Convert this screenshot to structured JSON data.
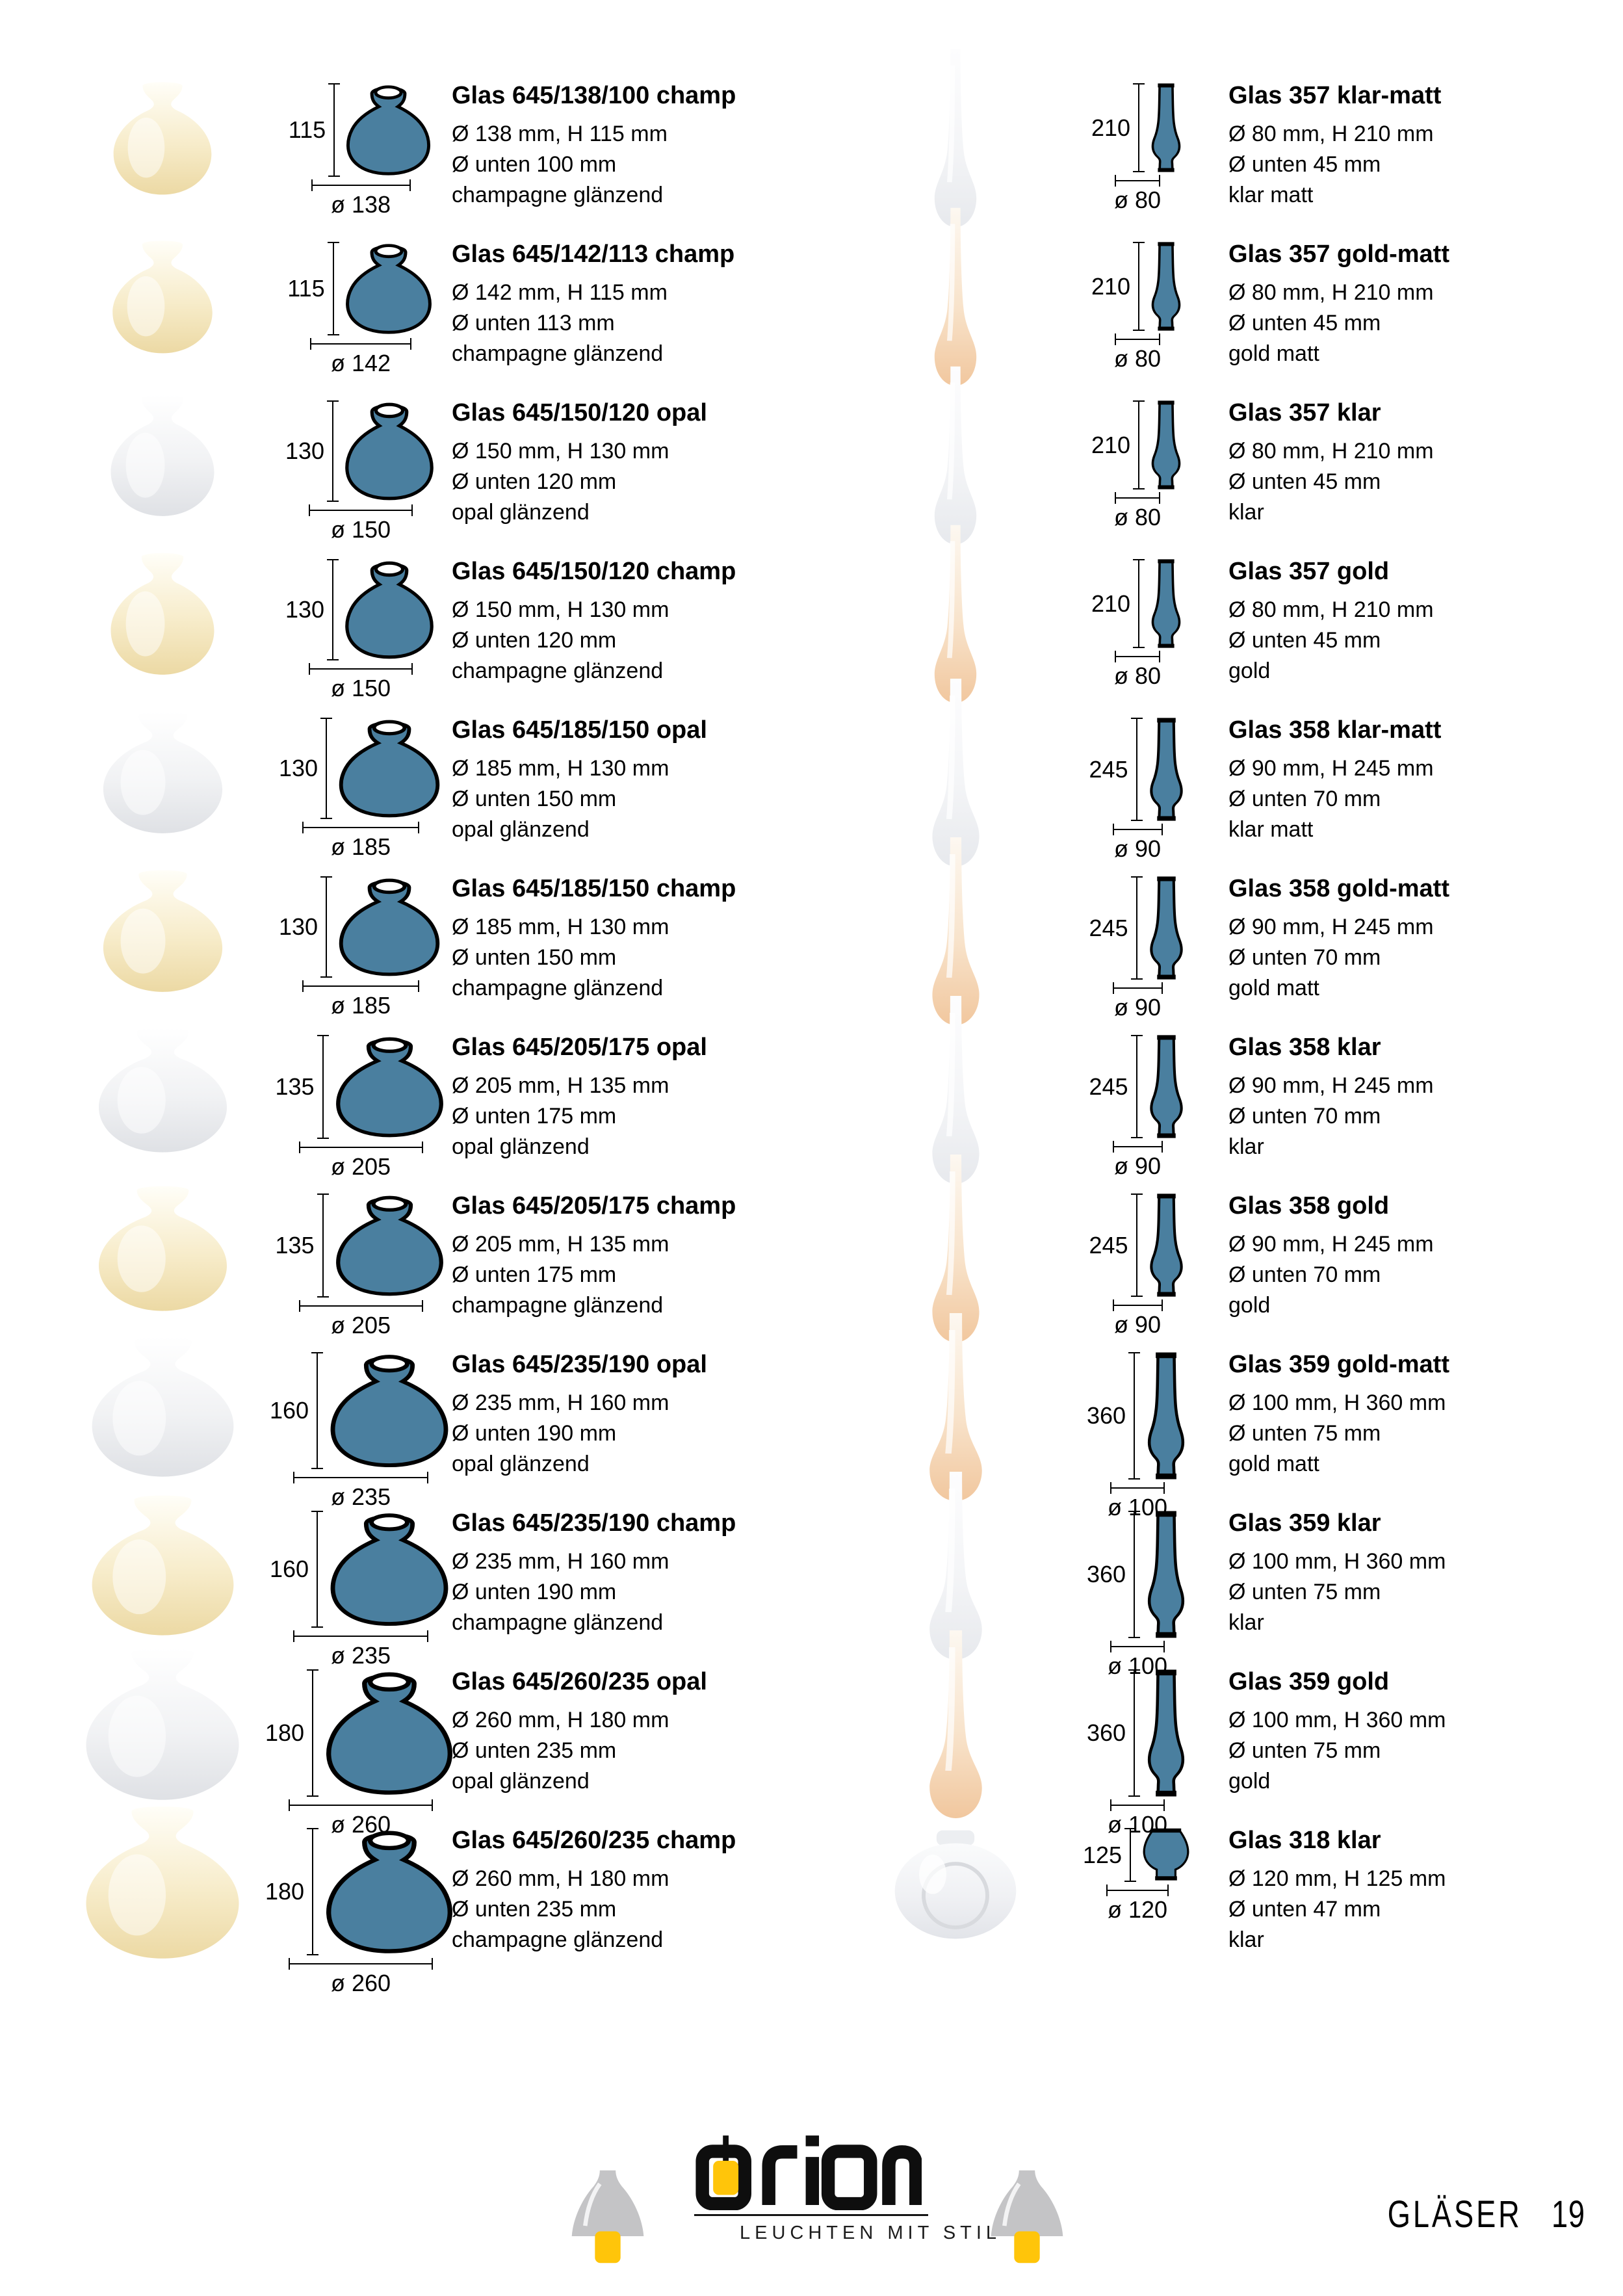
{
  "colors": {
    "drawing_blue": "#4a7f9f",
    "logo_yellow": "#ffc50a",
    "icon_gray": "#c4c4c6",
    "text_black": "#000000"
  },
  "footer": {
    "brand": "orion",
    "tagline": "LEUCHTEN MIT STIL",
    "section": "GLÄSER",
    "page_number": "19",
    "left_icon": "pendant-lamp-icon",
    "right_icon": "pendant-lamp-icon"
  },
  "products": {
    "left": [
      {
        "title": "Glas 645/138/100 champ",
        "spec": "Ø 138 mm, H 115 mm",
        "spec_unten": "Ø unten 100 mm",
        "finish": "champagne glänzend",
        "dim_h": "115",
        "dim_d": "ø 138",
        "mm_d": 138,
        "mm_h": 115,
        "shape": "shade",
        "photo": "champagne"
      },
      {
        "title": "Glas 645/142/113 champ",
        "spec": "Ø 142 mm, H 115 mm",
        "spec_unten": "Ø unten 113 mm",
        "finish": "champagne glänzend",
        "dim_h": "115",
        "dim_d": "ø 142",
        "mm_d": 142,
        "mm_h": 115,
        "shape": "shade",
        "photo": "champagne"
      },
      {
        "title": "Glas 645/150/120 opal",
        "spec": "Ø 150 mm, H 130 mm",
        "spec_unten": "Ø unten 120 mm",
        "finish": "opal glänzend",
        "dim_h": "130",
        "dim_d": "ø 150",
        "mm_d": 150,
        "mm_h": 130,
        "shape": "shade",
        "photo": "opal"
      },
      {
        "title": "Glas 645/150/120 champ",
        "spec": "Ø 150 mm, H 130 mm",
        "spec_unten": "Ø unten 120 mm",
        "finish": "champagne glänzend",
        "dim_h": "130",
        "dim_d": "ø 150",
        "mm_d": 150,
        "mm_h": 130,
        "shape": "shade",
        "photo": "champagne"
      },
      {
        "title": "Glas 645/185/150 opal",
        "spec": "Ø 185 mm, H 130 mm",
        "spec_unten": "Ø unten 150 mm",
        "finish": "opal glänzend",
        "dim_h": "130",
        "dim_d": "ø 185",
        "mm_d": 185,
        "mm_h": 130,
        "shape": "shade",
        "photo": "opal"
      },
      {
        "title": "Glas 645/185/150 champ",
        "spec": "Ø 185 mm, H 130 mm",
        "spec_unten": "Ø unten 150 mm",
        "finish": "champagne glänzend",
        "dim_h": "130",
        "dim_d": "ø 185",
        "mm_d": 185,
        "mm_h": 130,
        "shape": "shade",
        "photo": "champagne"
      },
      {
        "title": "Glas 645/205/175 opal",
        "spec": "Ø 205 mm, H 135 mm",
        "spec_unten": "Ø unten 175 mm",
        "finish": "opal glänzend",
        "dim_h": "135",
        "dim_d": "ø 205",
        "mm_d": 205,
        "mm_h": 135,
        "shape": "shade",
        "photo": "opal"
      },
      {
        "title": "Glas 645/205/175 champ",
        "spec": "Ø 205 mm, H 135 mm",
        "spec_unten": "Ø unten 175 mm",
        "finish": "champagne glänzend",
        "dim_h": "135",
        "dim_d": "ø 205",
        "mm_d": 205,
        "mm_h": 135,
        "shape": "shade",
        "photo": "champagne"
      },
      {
        "title": "Glas 645/235/190 opal",
        "spec": "Ø 235 mm, H 160 mm",
        "spec_unten": "Ø unten 190 mm",
        "finish": "opal glänzend",
        "dim_h": "160",
        "dim_d": "ø 235",
        "mm_d": 235,
        "mm_h": 160,
        "shape": "shade",
        "photo": "opal"
      },
      {
        "title": "Glas 645/235/190 champ",
        "spec": "Ø 235 mm, H 160 mm",
        "spec_unten": "Ø unten 190 mm",
        "finish": "champagne glänzend",
        "dim_h": "160",
        "dim_d": "ø 235",
        "mm_d": 235,
        "mm_h": 160,
        "shape": "shade",
        "photo": "champagne"
      },
      {
        "title": "Glas 645/260/235 opal",
        "spec": "Ø 260 mm, H 180 mm",
        "spec_unten": "Ø unten 235 mm",
        "finish": "opal glänzend",
        "dim_h": "180",
        "dim_d": "ø 260",
        "mm_d": 260,
        "mm_h": 180,
        "shape": "shade",
        "photo": "opal"
      },
      {
        "title": "Glas 645/260/235 champ",
        "spec": "Ø 260 mm, H 180 mm",
        "spec_unten": "Ø unten 235 mm",
        "finish": "champagne glänzend",
        "dim_h": "180",
        "dim_d": "ø 260",
        "mm_d": 260,
        "mm_h": 180,
        "shape": "shade",
        "photo": "champagne"
      }
    ],
    "right": [
      {
        "title": "Glas 357 klar-matt",
        "spec": "Ø 80 mm, H 210 mm",
        "spec_unten": "Ø unten 45 mm",
        "finish": "klar matt",
        "dim_h": "210",
        "dim_d": "ø 80",
        "mm_d": 80,
        "mm_h": 210,
        "shape": "chimney",
        "photo": "klar"
      },
      {
        "title": "Glas 357 gold-matt",
        "spec": "Ø 80 mm, H 210 mm",
        "spec_unten": "Ø unten 45 mm",
        "finish": "gold matt",
        "dim_h": "210",
        "dim_d": "ø 80",
        "mm_d": 80,
        "mm_h": 210,
        "shape": "chimney",
        "photo": "gold"
      },
      {
        "title": "Glas 357 klar",
        "spec": "Ø 80 mm, H 210 mm",
        "spec_unten": "Ø unten 45 mm",
        "finish": "klar",
        "dim_h": "210",
        "dim_d": "ø 80",
        "mm_d": 80,
        "mm_h": 210,
        "shape": "chimney",
        "photo": "klar"
      },
      {
        "title": "Glas 357 gold",
        "spec": "Ø 80 mm, H 210 mm",
        "spec_unten": "Ø unten 45 mm",
        "finish": "gold",
        "dim_h": "210",
        "dim_d": "ø 80",
        "mm_d": 80,
        "mm_h": 210,
        "shape": "chimney",
        "photo": "gold"
      },
      {
        "title": "Glas 358 klar-matt",
        "spec": "Ø 90 mm, H 245 mm",
        "spec_unten": "Ø unten 70 mm",
        "finish": "klar matt",
        "dim_h": "245",
        "dim_d": "ø 90",
        "mm_d": 90,
        "mm_h": 245,
        "shape": "chimney",
        "photo": "klar"
      },
      {
        "title": "Glas 358 gold-matt",
        "spec": "Ø 90 mm, H 245 mm",
        "spec_unten": "Ø unten 70 mm",
        "finish": "gold matt",
        "dim_h": "245",
        "dim_d": "ø 90",
        "mm_d": 90,
        "mm_h": 245,
        "shape": "chimney",
        "photo": "gold"
      },
      {
        "title": "Glas 358 klar",
        "spec": "Ø 90 mm, H 245 mm",
        "spec_unten": "Ø unten 70 mm",
        "finish": "klar",
        "dim_h": "245",
        "dim_d": "ø 90",
        "mm_d": 90,
        "mm_h": 245,
        "shape": "chimney",
        "photo": "klar"
      },
      {
        "title": "Glas 358 gold",
        "spec": "Ø 90 mm, H 245 mm",
        "spec_unten": "Ø unten 70 mm",
        "finish": "gold",
        "dim_h": "245",
        "dim_d": "ø 90",
        "mm_d": 90,
        "mm_h": 245,
        "shape": "chimney",
        "photo": "gold"
      },
      {
        "title": "Glas 359 gold-matt",
        "spec": "Ø 100 mm, H 360 mm",
        "spec_unten": "Ø unten 75 mm",
        "finish": "gold matt",
        "dim_h": "360",
        "dim_d": "ø 100",
        "mm_d": 100,
        "mm_h": 360,
        "shape": "chimney",
        "photo": "gold"
      },
      {
        "title": "Glas 359 klar",
        "spec": "Ø 100 mm, H 360 mm",
        "spec_unten": "Ø unten 75 mm",
        "finish": "klar",
        "dim_h": "360",
        "dim_d": "ø 100",
        "mm_d": 100,
        "mm_h": 360,
        "shape": "chimney",
        "photo": "klar"
      },
      {
        "title": "Glas 359 gold",
        "spec": "Ø 100 mm, H 360 mm",
        "spec_unten": "Ø unten 75 mm",
        "finish": "gold",
        "dim_h": "360",
        "dim_d": "ø 100",
        "mm_d": 100,
        "mm_h": 360,
        "shape": "chimney",
        "photo": "gold"
      },
      {
        "title": "Glas 318 klar",
        "spec": "Ø 120 mm, H 125 mm",
        "spec_unten": "Ø unten 47 mm",
        "finish": "klar",
        "dim_h": "125",
        "dim_d": "ø 120",
        "mm_d": 120,
        "mm_h": 125,
        "shape": "hurricane",
        "photo": "klar318"
      }
    ]
  }
}
